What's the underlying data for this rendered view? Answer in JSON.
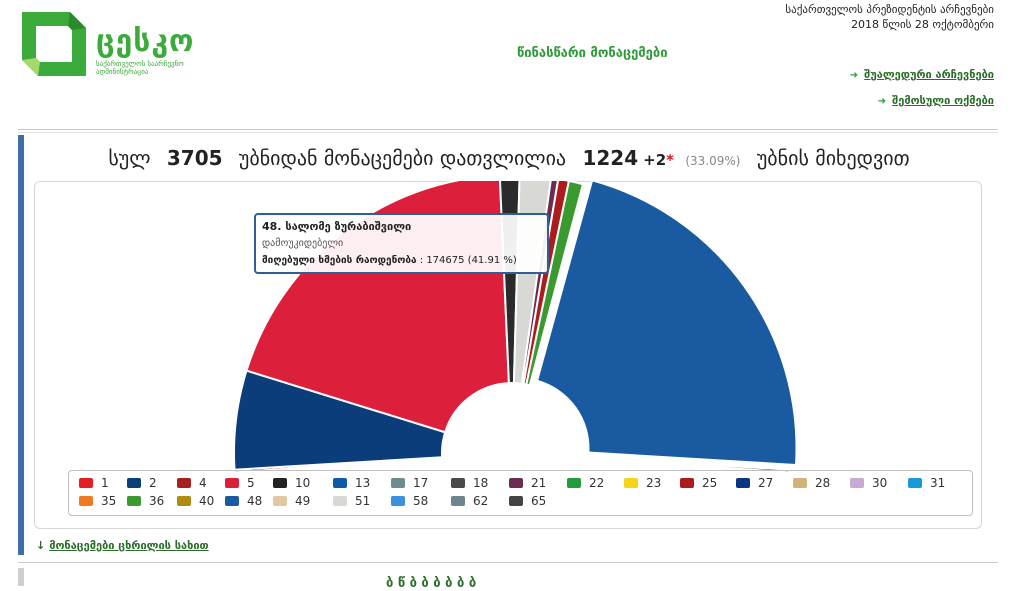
{
  "brand": {
    "name": "ცესკო",
    "subtitle": "საქართველოს საარჩევნო ადმინისტრაცია"
  },
  "header": {
    "title": "წინასწარი მონაცემები",
    "election_name": "საქართველოს პრეზიდენტის არჩევნები",
    "election_date": "2018 წლის 28 ოქტომბერი",
    "links": [
      {
        "label": "შუალედური არჩევნები"
      },
      {
        "label": "შემოსული ოქმები"
      }
    ]
  },
  "summary": {
    "prefix": "სულ",
    "total_precincts": "3705",
    "middle": "უბნიდან მონაცემები დათვლილია",
    "counted": "1224",
    "plus": "+2",
    "star": "*",
    "percent": "(33.09%)",
    "suffix": "უბნის მიხედვით"
  },
  "tooltip": {
    "name": "48. სალომე ზურაბიშვილი",
    "party": "დამოუკიდებელი",
    "votes_label": "მიღებული ხმების რაოდენობა",
    "votes_value": ": 174675 (41.91 %)"
  },
  "chart_data": {
    "type": "pie",
    "series": [
      {
        "name": "1",
        "color": "#e31e24",
        "value": 0.3
      },
      {
        "name": "2",
        "color": "#0a3d7a",
        "value": 11.1
      },
      {
        "name": "5",
        "color": "#dc1f3b",
        "value": 37.7
      },
      {
        "name": "10",
        "color": "#2b2b2b",
        "value": 2.2
      },
      {
        "name": "51",
        "color": "#d8d8d4",
        "value": 3.5
      },
      {
        "name": "21",
        "color": "#6b2d4f",
        "value": 0.8
      },
      {
        "name": "25",
        "color": "#ad1c1c",
        "value": 1.2
      },
      {
        "name": "36",
        "color": "#3a9a2f",
        "value": 1.6
      },
      {
        "name": "49",
        "color": "#f0f0ee",
        "value": 0.3
      },
      {
        "name": "48",
        "color": "#1a5aa0",
        "value": 41.91
      },
      {
        "name": "65",
        "color": "#555555",
        "value": 0.3
      }
    ]
  },
  "legend": [
    {
      "label": "1",
      "color": "#e31e24"
    },
    {
      "label": "2",
      "color": "#0a3d7a"
    },
    {
      "label": "4",
      "color": "#a7221f"
    },
    {
      "label": "5",
      "color": "#dc1f3b"
    },
    {
      "label": "10",
      "color": "#222222"
    },
    {
      "label": "13",
      "color": "#0e5aa7"
    },
    {
      "label": "17",
      "color": "#6e8a8f"
    },
    {
      "label": "18",
      "color": "#4a4a4a"
    },
    {
      "label": "21",
      "color": "#6b2d4f"
    },
    {
      "label": "22",
      "color": "#229b3a"
    },
    {
      "label": "23",
      "color": "#f7d417"
    },
    {
      "label": "25",
      "color": "#ad1c1c"
    },
    {
      "label": "27",
      "color": "#0b3482"
    },
    {
      "label": "28",
      "color": "#d4b37a"
    },
    {
      "label": "30",
      "color": "#c9a9d4"
    },
    {
      "label": "31",
      "color": "#1999d6"
    },
    {
      "label": "35",
      "color": "#ef7a22"
    },
    {
      "label": "36",
      "color": "#3a9a2f"
    },
    {
      "label": "40",
      "color": "#b08a12"
    },
    {
      "label": "48",
      "color": "#1a5aa0"
    },
    {
      "label": "49",
      "color": "#e0c9a0"
    },
    {
      "label": "51",
      "color": "#d8d8d4"
    },
    {
      "label": "58",
      "color": "#3d8fe0"
    },
    {
      "label": "62",
      "color": "#6d858c"
    },
    {
      "label": "65",
      "color": "#444444"
    }
  ],
  "bottom": {
    "table_link": "მონაცემები ცხრილის სახით",
    "cut_text": "ბ    წ  ბ   ბ   ბ ბ ბ ბ"
  }
}
